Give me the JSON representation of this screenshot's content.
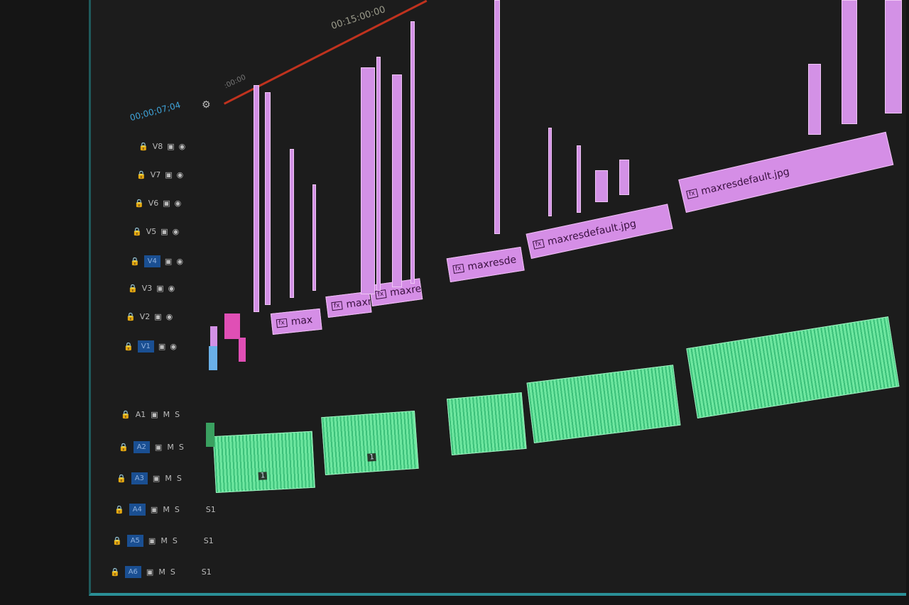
{
  "timeline": {
    "timecode_marker": "00:15:00:00",
    "ruler_start": ":00:00",
    "sequence_timecode": "00;00;07;04"
  },
  "video_tracks": [
    "V8",
    "V7",
    "V6",
    "V5",
    "V4",
    "V3",
    "V2",
    "V1"
  ],
  "audio_tracks": [
    {
      "label": "A1",
      "m": "M",
      "s": "S"
    },
    {
      "label": "A2",
      "m": "M",
      "s": "S"
    },
    {
      "label": "A3",
      "m": "M",
      "s": "S"
    },
    {
      "label": "A4",
      "m": "M",
      "s": "S",
      "extra": "S1"
    },
    {
      "label": "A5",
      "m": "M",
      "s": "S",
      "extra": "S1"
    },
    {
      "label": "A6",
      "m": "M",
      "s": "S",
      "extra": "S1"
    }
  ],
  "clips": {
    "fx_badge": "fx",
    "video": [
      "max",
      "maxr",
      "maxre",
      "maxresde",
      "maxresdefault.jpg",
      "maxresdefault.jpg"
    ],
    "audio_marker": "1"
  },
  "colors": {
    "video_clip": "#d58ee6",
    "audio_clip": "#4fd68a",
    "playhead_bar": "#c0321e",
    "track_target": "#1a4f92",
    "border": "#2a8f96"
  }
}
